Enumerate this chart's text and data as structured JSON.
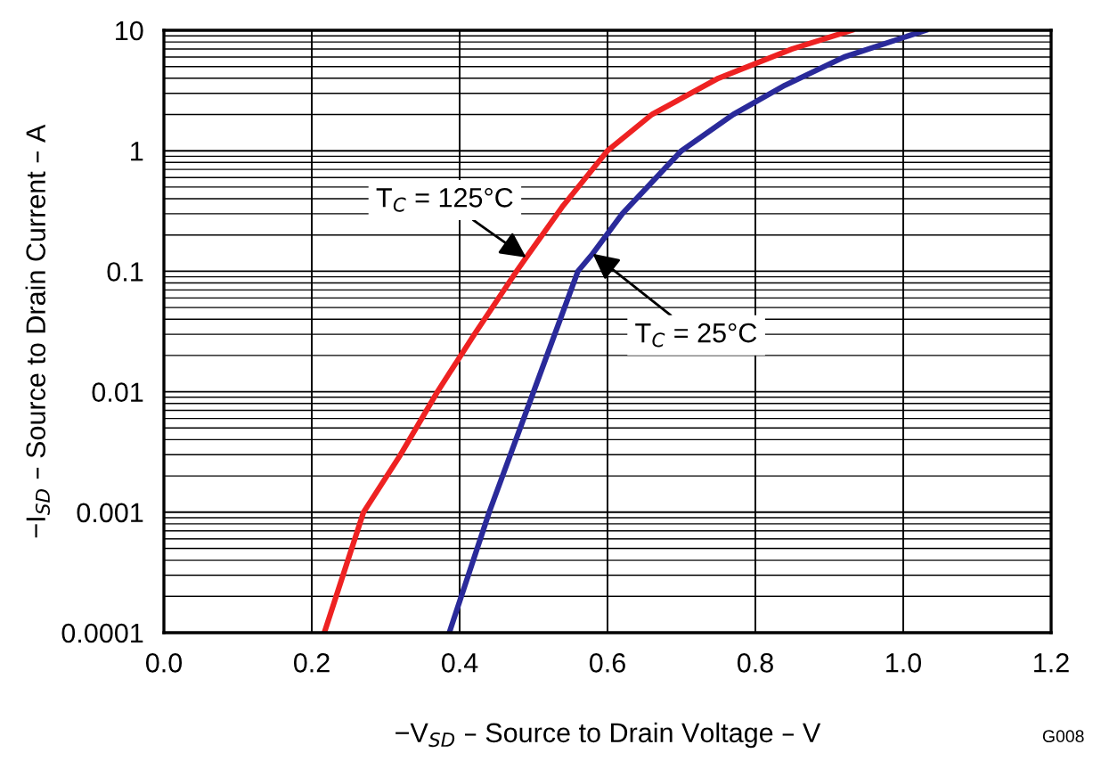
{
  "chart_data": {
    "type": "line",
    "xlabel": "−V$_{SD}$ – Source to Drain Voltage – V",
    "ylabel": "−I$_{SD}$ – Source to Drain Current – A",
    "log": "y",
    "xlim": [
      0,
      1.2
    ],
    "xticks": [
      {
        "value": 0,
        "label": "0.0"
      },
      {
        "value": 0.2,
        "label": "0.2"
      },
      {
        "value": 0.4,
        "label": "0.4"
      },
      {
        "value": 0.6,
        "label": "0.6"
      },
      {
        "value": 0.8,
        "label": "0.8"
      },
      {
        "value": 1.0,
        "label": "1.0"
      },
      {
        "value": 1.2,
        "label": "1.2"
      }
    ],
    "ylim": [
      0.0001,
      10
    ],
    "yticks": [
      {
        "value": 0.0001,
        "label": "0.0001"
      },
      {
        "value": 0.001,
        "label": "0.001"
      },
      {
        "value": 0.01,
        "label": "0.01"
      },
      {
        "value": 0.1,
        "label": "0.1"
      },
      {
        "value": 1,
        "label": "1"
      },
      {
        "value": 10,
        "label": "10"
      }
    ],
    "grid": true,
    "legend": false,
    "marker": "none",
    "line_style": "solid",
    "series": [
      {
        "color": "#ee2222",
        "x": [
          0.217,
          0.27,
          0.32,
          0.37,
          0.42,
          0.477,
          0.49,
          0.54,
          0.6,
          0.66,
          0.75,
          0.85,
          0.93
        ],
        "values": [
          0.0001,
          0.001,
          0.003,
          0.01,
          0.03,
          0.1,
          0.13,
          0.35,
          1,
          2,
          4,
          7,
          10
        ]
      },
      {
        "color": "#2a2a9a",
        "x": [
          0.386,
          0.44,
          0.5,
          0.56,
          0.58,
          0.62,
          0.7,
          0.77,
          0.84,
          0.92,
          1.03
        ],
        "values": [
          0.0001,
          0.001,
          0.01,
          0.1,
          0.14,
          0.3,
          1,
          2,
          3.5,
          6,
          10
        ]
      }
    ],
    "annotations": [
      {
        "text": "T$_{C}$ = 125°C",
        "x": 0.49,
        "y": 0.13
      },
      {
        "text": "T$_{C}$ = 25°C",
        "x": 0.58,
        "y": 0.14
      },
      "G008"
    ]
  }
}
